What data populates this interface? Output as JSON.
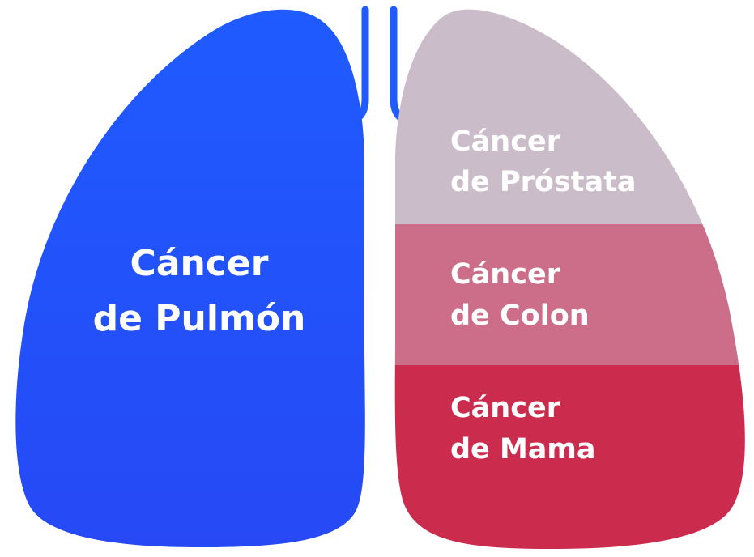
{
  "diagram": {
    "left_lung": {
      "line1": "Cáncer",
      "line2": "de Pulmón"
    },
    "right_lung": {
      "top": {
        "line1": "Cáncer",
        "line2": "de Próstata"
      },
      "middle": {
        "line1": "Cáncer",
        "line2": "de Colon"
      },
      "bottom": {
        "line1": "Cáncer",
        "line2": "de Mama"
      }
    }
  },
  "colors": {
    "left_lung_top": "#1f5bff",
    "left_lung_bottom": "#2649f5",
    "trachea": "#1f5bff",
    "prostate": "#cbbcc9",
    "colon": "#cc6d89",
    "breast": "#cb2c4e",
    "text": "#ffffff"
  }
}
